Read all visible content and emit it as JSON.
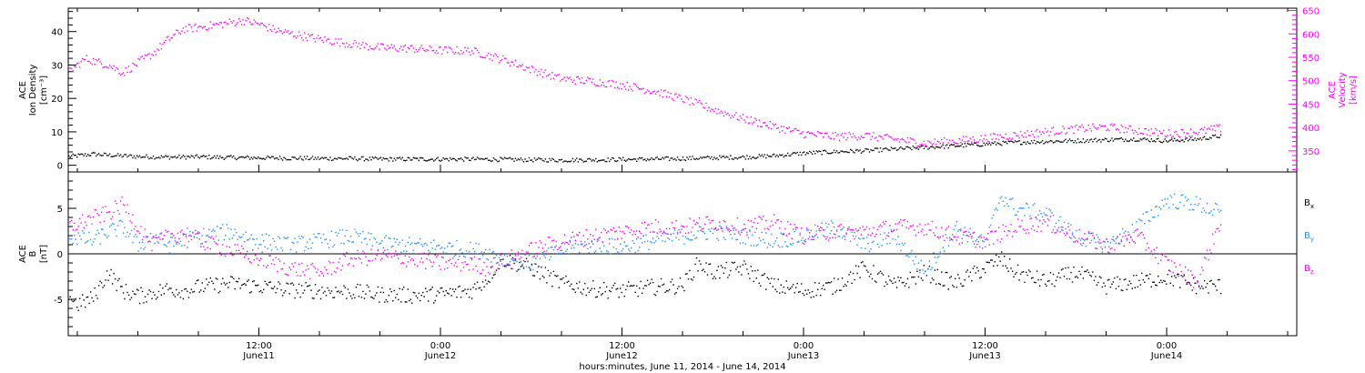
{
  "colors": {
    "black": "#000000",
    "magenta": "#ff00ff",
    "blue": "#1e90ff",
    "frame": "#000000"
  },
  "x_axis": {
    "title": "hours:minutes, June 11, 2014 - June 14, 2014",
    "range_hours": [
      -8.6,
      72.6
    ],
    "major_ticks": [
      {
        "hour": 4,
        "time": "12:00",
        "date": "June11"
      },
      {
        "hour": 16,
        "time": "0:00",
        "date": "June12"
      },
      {
        "hour": 28,
        "time": "12:00",
        "date": "June12"
      },
      {
        "hour": 40,
        "time": "0:00",
        "date": "June13"
      },
      {
        "hour": 52,
        "time": "12:00",
        "date": "June13"
      },
      {
        "hour": 64,
        "time": "0:00",
        "date": "June14"
      }
    ]
  },
  "chart_data": [
    {
      "type": "scatter",
      "panel": "top",
      "ylabel_left": [
        "ACE",
        "Ion Density",
        "[cm⁻³]"
      ],
      "ylabel_right": [
        "ACE",
        "Velocity",
        "[km/s]"
      ],
      "ylim": [
        -2,
        47
      ],
      "ylim_right": [
        305,
        655
      ],
      "yticks": [
        0,
        10,
        20,
        30,
        40
      ],
      "yticks_right": [
        350,
        400,
        450,
        500,
        550,
        600,
        650
      ],
      "series": [
        {
          "axis": "left",
          "color": "black",
          "x": [
            -8.6,
            -7,
            -6,
            -4,
            -2,
            0,
            2,
            4,
            6,
            8,
            10,
            12,
            14,
            16,
            18,
            20,
            22,
            24,
            26,
            28,
            30,
            32,
            34,
            36,
            38,
            40,
            42,
            44,
            46,
            48,
            50,
            52,
            54,
            56,
            58,
            60,
            62,
            64,
            66,
            67.6
          ],
          "values": [
            2.8,
            3.5,
            3.2,
            2.8,
            2.6,
            2.7,
            2.5,
            2.4,
            2.3,
            2.2,
            2.2,
            2.0,
            2.0,
            2.0,
            2.0,
            1.9,
            1.8,
            1.7,
            1.8,
            1.9,
            2.0,
            2.2,
            2.4,
            2.6,
            3.0,
            3.8,
            4.2,
            4.5,
            5.0,
            5.5,
            6.0,
            6.5,
            7.0,
            7.3,
            7.5,
            7.8,
            8.0,
            7.5,
            8.0,
            9.0
          ]
        },
        {
          "axis": "right",
          "color": "magenta",
          "x": [
            -8.6,
            -7.5,
            -6,
            -5,
            -4,
            -3,
            -2,
            -1,
            0,
            1,
            2,
            3,
            4,
            5,
            6,
            8,
            10,
            12,
            14,
            16,
            18,
            20,
            22,
            24,
            26,
            28,
            30,
            32,
            34,
            36,
            38,
            40,
            42,
            44,
            46,
            48,
            50,
            52,
            54,
            56,
            58,
            60,
            62,
            64,
            66,
            67.6
          ],
          "values": [
            520,
            548,
            535,
            518,
            540,
            560,
            590,
            612,
            615,
            620,
            625,
            630,
            622,
            610,
            602,
            590,
            580,
            572,
            570,
            566,
            565,
            548,
            525,
            505,
            500,
            492,
            480,
            462,
            440,
            420,
            403,
            388,
            382,
            384,
            376,
            368,
            372,
            378,
            385,
            392,
            398,
            402,
            395,
            388,
            392,
            400
          ]
        }
      ]
    },
    {
      "type": "scatter",
      "panel": "bottom",
      "ylabel_left": [
        "ACE",
        "B",
        "[nT]"
      ],
      "ylim": [
        -9,
        9
      ],
      "yticks": [
        -5,
        0,
        5
      ],
      "zero_line": true,
      "series": [
        {
          "name": "Bx",
          "color": "black",
          "x": [
            -8.6,
            -8,
            -7,
            -6,
            -5,
            -4,
            -3,
            -2,
            -1,
            0,
            2,
            4,
            6,
            8,
            10,
            12,
            14,
            16,
            18,
            19,
            20,
            22,
            24,
            26,
            28,
            30,
            32,
            33,
            34,
            36,
            38,
            40,
            42,
            44,
            46,
            48,
            50,
            52,
            53,
            54,
            56,
            58,
            60,
            62,
            64,
            66,
            67.6
          ],
          "values": [
            -4.5,
            -5.5,
            -4.8,
            -2.0,
            -4.0,
            -4.6,
            -4.2,
            -3.8,
            -4.0,
            -3.6,
            -3.2,
            -3.5,
            -3.9,
            -4.0,
            -4.1,
            -4.4,
            -4.5,
            -4.4,
            -4.0,
            -2.8,
            -0.5,
            -1.5,
            -3.2,
            -3.8,
            -4.0,
            -3.6,
            -3.4,
            -1.0,
            -2.0,
            -1.5,
            -3.5,
            -4.0,
            -3.5,
            -1.5,
            -3.5,
            -2.0,
            -3.2,
            -1.5,
            -0.5,
            -2.0,
            -3.0,
            -2.0,
            -3.5,
            -3.0,
            -2.5,
            -3.5,
            -3.5
          ]
        },
        {
          "name": "By",
          "color": "blue",
          "x": [
            -8.6,
            -7,
            -6,
            -5,
            -4,
            -3,
            -2,
            -1,
            0,
            2,
            4,
            6,
            8,
            10,
            12,
            14,
            16,
            18,
            19,
            20,
            22,
            24,
            26,
            28,
            30,
            32,
            34,
            36,
            38,
            40,
            42,
            44,
            46,
            48,
            50,
            52,
            53,
            54,
            56,
            58,
            60,
            62,
            64,
            66,
            67.6
          ],
          "values": [
            2.0,
            1.5,
            2.5,
            3.0,
            1.0,
            2.0,
            1.0,
            1.5,
            2.0,
            2.5,
            1.5,
            1.0,
            1.5,
            2.0,
            1.2,
            1.0,
            0.8,
            0.5,
            0.3,
            -0.5,
            -1.0,
            0.5,
            1.0,
            0.8,
            1.5,
            2.0,
            2.5,
            2.0,
            1.5,
            2.0,
            3.0,
            1.0,
            2.0,
            -2.0,
            3.0,
            1.0,
            6.5,
            5.0,
            4.5,
            2.0,
            1.0,
            3.0,
            6.0,
            5.5,
            4.5
          ]
        },
        {
          "name": "Bz",
          "color": "magenta",
          "x": [
            -8.6,
            -7,
            -6,
            -5,
            -4,
            -3,
            -2,
            -1,
            0,
            2,
            4,
            6,
            8,
            10,
            12,
            14,
            16,
            18,
            19,
            20,
            22,
            24,
            26,
            28,
            30,
            32,
            34,
            36,
            38,
            40,
            42,
            44,
            46,
            48,
            50,
            52,
            54,
            56,
            58,
            60,
            62,
            64,
            66,
            67.6
          ],
          "values": [
            3.0,
            4.0,
            4.5,
            5.5,
            3.0,
            1.0,
            2.0,
            2.5,
            1.5,
            0.5,
            -0.5,
            -1.5,
            -2.0,
            -0.5,
            -0.2,
            -0.5,
            -1.0,
            -1.0,
            -1.5,
            -0.8,
            0.5,
            1.5,
            2.0,
            2.5,
            3.0,
            3.0,
            3.5,
            3.0,
            3.5,
            2.0,
            2.5,
            2.5,
            3.0,
            3.0,
            2.0,
            1.5,
            3.0,
            3.5,
            2.0,
            1.0,
            2.0,
            -1.0,
            -3.0,
            4.0
          ]
        }
      ]
    }
  ],
  "legend": {
    "placement": "right",
    "entries": [
      {
        "label": "B",
        "sub": "x",
        "color": "black"
      },
      {
        "label": "B",
        "sub": "y",
        "color": "blue"
      },
      {
        "label": "B",
        "sub": "z",
        "color": "magenta"
      }
    ]
  }
}
